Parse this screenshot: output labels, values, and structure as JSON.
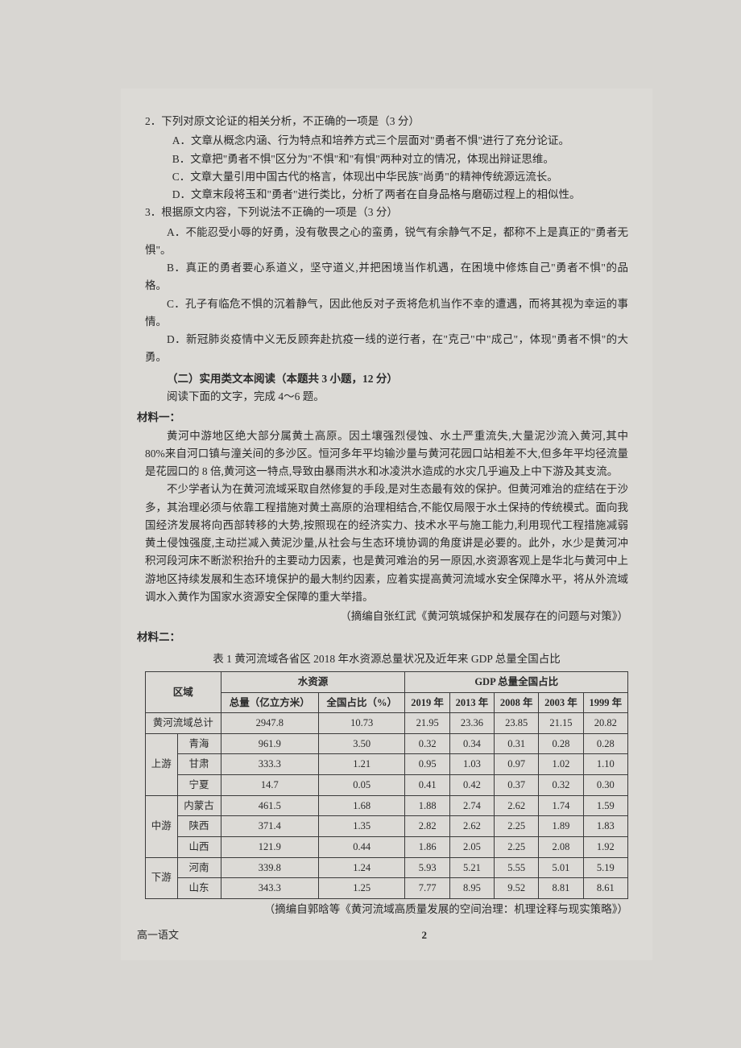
{
  "q2": {
    "stem": "2．下列对原文论证的相关分析，不正确的一项是（3 分）",
    "A": "A．文章从概念内涵、行为特点和培养方式三个层面对\"勇者不惧\"进行了充分论证。",
    "B": "B．文章把\"勇者不惧\"区分为\"不惧\"和\"有惧\"两种对立的情况，体现出辩证思维。",
    "C": "C．文章大量引用中国古代的格言，体现出中华民族\"尚勇\"的精神传统源远流长。",
    "D": "D．文章末段将玉和\"勇者\"进行类比，分析了两者在自身品格与磨砺过程上的相似性。"
  },
  "q3": {
    "stem": "3．根据原文内容，下列说法不正确的一项是（3 分）",
    "A": "A．不能忍受小辱的好勇，没有敬畏之心的蛮勇，锐气有余静气不足，都称不上是真正的\"勇者无惧\"。",
    "B": "B．真正的勇者要心系道义，坚守道义,并把困境当作机遇，在困境中修炼自己\"勇者不惧\"的品格。",
    "C": "C．孔子有临危不惧的沉着静气，因此他反对子贡将危机当作不幸的遭遇，而将其视为幸运的事情。",
    "D": "D．新冠肺炎疫情中义无反顾奔赴抗疫一线的逆行者，在\"克己\"中\"成己\"，体现\"勇者不惧\"的大勇。"
  },
  "section2": {
    "title": "（二）实用类文本阅读（本题共 3 小题，12 分）",
    "instruct": "阅读下面的文字，完成 4～6 题。"
  },
  "mat1": {
    "label": "材料一：",
    "p1": "黄河中游地区绝大部分属黄土高原。因土壤强烈侵蚀、水土严重流失,大量泥沙流入黄河,其中 80%来自河口镇与潼关间的多沙区。恒河多年平均输沙量与黄河花园口站相差不大,但多年平均径流量是花园口的 8 倍,黄河这一特点,导致由暴雨洪水和冰凌洪水造成的水灾几乎遍及上中下游及其支流。",
    "p2": "不少学者认为在黄河流域采取自然修复的手段,是对生态最有效的保护。但黄河难治的症结在于沙多，其治理必须与依靠工程措施对黄土高原的治理相结合,不能仅局限于水土保持的传统模式。面向我国经济发展将向西部转移的大势,按照现在的经济实力、技术水平与施工能力,利用现代工程措施减弱黄土侵蚀强度,主动拦减入黄泥沙量,从社会与生态环境协调的角度讲是必要的。此外，水少是黄河冲积河段河床不断淤积抬升的主要动力因素，也是黄河难治的另一原因,水资源客观上是华北与黄河中上游地区持续发展和生态环境保护的最大制约因素，应着实提高黄河流域水安全保障水平，将从外流域调水入黄作为国家水资源安全保障的重大举措。",
    "source": "（摘编自张红武《黄河筑城保护和发展存在的问题与对策》）"
  },
  "mat2": {
    "label": "材料二：",
    "tableTitle": "表 1 黄河流域各省区 2018 年水资源总量状况及近年来 GDP 总量全国占比",
    "headers": {
      "region": "区域",
      "water": "水资源",
      "gdp": "GDP 总量全国占比",
      "total": "总量（亿立方米）",
      "share": "全国占比（%）",
      "y2019": "2019 年",
      "y2013": "2013 年",
      "y2008": "2008 年",
      "y2003": "2003 年",
      "y1999": "1999 年"
    },
    "groups": {
      "total": "黄河流域总计",
      "up": "上游",
      "mid": "中游",
      "down": "下游"
    },
    "rows": [
      {
        "g": "total",
        "name": "",
        "water": "2947.8",
        "share": "10.73",
        "y19": "21.95",
        "y13": "23.36",
        "y08": "23.85",
        "y03": "21.15",
        "y99": "20.82"
      },
      {
        "g": "up",
        "name": "青海",
        "water": "961.9",
        "share": "3.50",
        "y19": "0.32",
        "y13": "0.34",
        "y08": "0.31",
        "y03": "0.28",
        "y99": "0.28"
      },
      {
        "g": "up",
        "name": "甘肃",
        "water": "333.3",
        "share": "1.21",
        "y19": "0.95",
        "y13": "1.03",
        "y08": "0.97",
        "y03": "1.02",
        "y99": "1.10"
      },
      {
        "g": "up",
        "name": "宁夏",
        "water": "14.7",
        "share": "0.05",
        "y19": "0.41",
        "y13": "0.42",
        "y08": "0.37",
        "y03": "0.32",
        "y99": "0.30"
      },
      {
        "g": "mid",
        "name": "内蒙古",
        "water": "461.5",
        "share": "1.68",
        "y19": "1.88",
        "y13": "2.74",
        "y08": "2.62",
        "y03": "1.74",
        "y99": "1.59"
      },
      {
        "g": "mid",
        "name": "陕西",
        "water": "371.4",
        "share": "1.35",
        "y19": "2.82",
        "y13": "2.62",
        "y08": "2.25",
        "y03": "1.89",
        "y99": "1.83"
      },
      {
        "g": "mid",
        "name": "山西",
        "water": "121.9",
        "share": "0.44",
        "y19": "1.86",
        "y13": "2.05",
        "y08": "2.25",
        "y03": "2.08",
        "y99": "1.92"
      },
      {
        "g": "down",
        "name": "河南",
        "water": "339.8",
        "share": "1.24",
        "y19": "5.93",
        "y13": "5.21",
        "y08": "5.55",
        "y03": "5.01",
        "y99": "5.19"
      },
      {
        "g": "down",
        "name": "山东",
        "water": "343.3",
        "share": "1.25",
        "y19": "7.77",
        "y13": "8.95",
        "y08": "9.52",
        "y03": "8.81",
        "y99": "8.61"
      }
    ],
    "source": "（摘编自郭晗等《黄河流域高质量发展的空间治理：机理诠释与现实策略》）"
  },
  "footer": {
    "left": "高一语文",
    "page": "2"
  }
}
